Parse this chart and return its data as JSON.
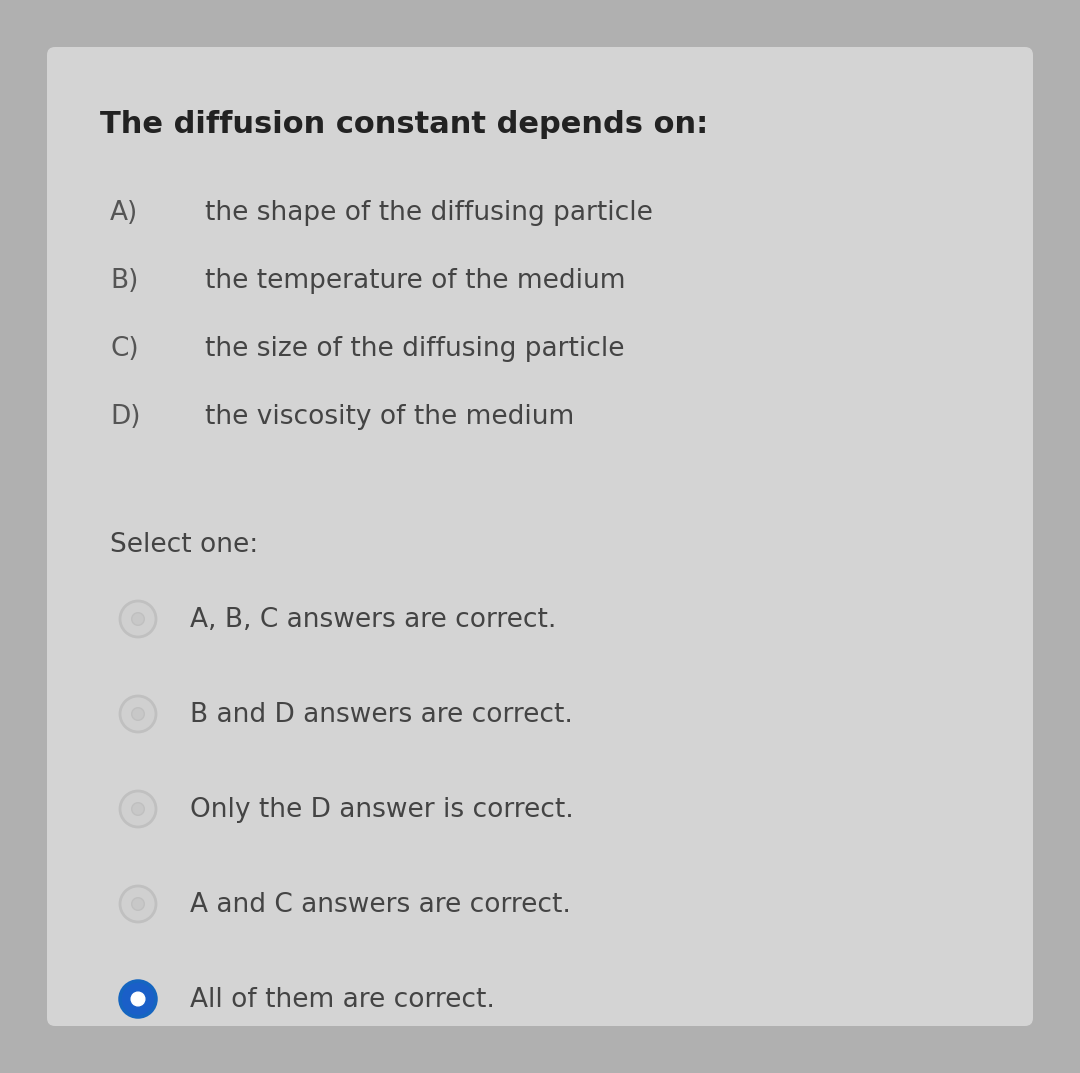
{
  "background_color": "#b0b0b0",
  "card_color": "#d4d4d4",
  "title": "The diffusion constant depends on:",
  "title_fontsize": 22,
  "options": [
    {
      "label": "A)",
      "text": "the shape of the diffusing particle"
    },
    {
      "label": "B)",
      "text": "the temperature of the medium"
    },
    {
      "label": "C)",
      "text": "the size of the diffusing particle"
    },
    {
      "label": "D)",
      "text": "the viscosity of the medium"
    }
  ],
  "select_one_label": "Select one:",
  "radio_options": [
    {
      "text": "A, B, C answers are correct.",
      "selected": false
    },
    {
      "text": "B and D answers are correct.",
      "selected": false
    },
    {
      "text": "Only the D answer is correct.",
      "selected": false
    },
    {
      "text": "A and C answers are correct.",
      "selected": false
    },
    {
      "text": "All of them are correct.",
      "selected": true
    }
  ],
  "text_color": "#444444",
  "label_color": "#555555",
  "radio_unselected_outer": "#c0c0c0",
  "radio_unselected_inner": "#d0d0d0",
  "radio_selected_fill": "#1a5fc8",
  "radio_selected_border": "#1565c0",
  "option_fontsize": 19,
  "label_fontsize": 19,
  "select_fontsize": 19,
  "radio_fontsize": 19,
  "title_color": "#222222"
}
